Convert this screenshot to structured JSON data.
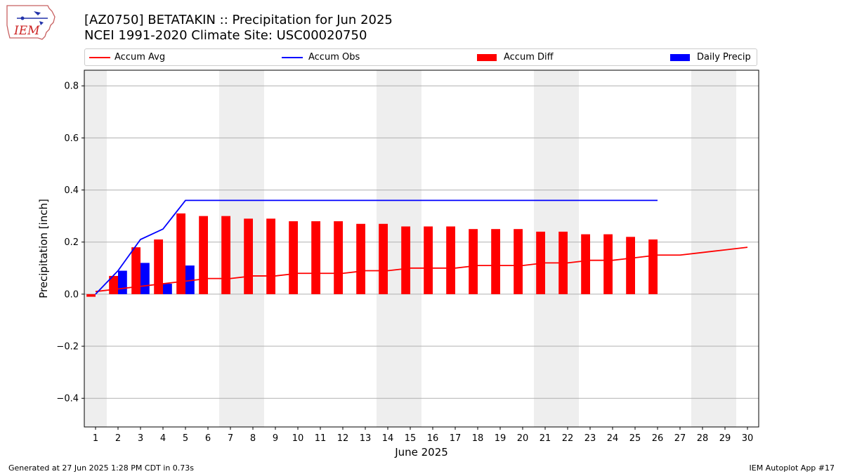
{
  "title": "[AZ0750] BETATAKIN :: Precipitation for Jun 2025",
  "subtitle": "NCEI 1991-2020 Climate Site: USC00020750",
  "logo_text": "IEM",
  "footer_left": "Generated at 27 Jun 2025 1:28 PM CDT in 0.73s",
  "footer_right": "IEM Autoplot App #17",
  "legend": [
    {
      "label": "Accum Avg",
      "kind": "line",
      "color": "#ff0000"
    },
    {
      "label": "Accum Obs",
      "kind": "line",
      "color": "#0000ff"
    },
    {
      "label": "Accum Diff",
      "kind": "box",
      "color": "#ff0000"
    },
    {
      "label": "Daily Precip",
      "kind": "box",
      "color": "#0000ff"
    }
  ],
  "chart_data": {
    "type": "bar",
    "xlabel": "June 2025",
    "ylabel": "Precipitation [inch]",
    "xlim": [
      0.5,
      30.5
    ],
    "ylim": [
      -0.51,
      0.86
    ],
    "x_ticks": [
      1,
      2,
      3,
      4,
      5,
      6,
      7,
      8,
      9,
      10,
      11,
      12,
      13,
      14,
      15,
      16,
      17,
      18,
      19,
      20,
      21,
      22,
      23,
      24,
      25,
      26,
      27,
      28,
      29,
      30
    ],
    "y_ticks": [
      -0.4,
      -0.2,
      0.0,
      0.2,
      0.4,
      0.6,
      0.8
    ],
    "y_tick_labels": [
      "−0.4",
      "−0.2",
      "0.0",
      "0.2",
      "0.4",
      "0.6",
      "0.8"
    ],
    "grid": "horizontal",
    "legend_position": "top",
    "weekend_shading": [
      [
        0.5,
        1.5
      ],
      [
        6.5,
        8.5
      ],
      [
        13.5,
        15.5
      ],
      [
        20.5,
        22.5
      ],
      [
        27.5,
        29.5
      ]
    ],
    "series": [
      {
        "name": "Accum Avg",
        "kind": "line",
        "color": "#ff0000",
        "x": [
          1,
          2,
          3,
          4,
          5,
          6,
          7,
          8,
          9,
          10,
          11,
          12,
          13,
          14,
          15,
          16,
          17,
          18,
          19,
          20,
          21,
          22,
          23,
          24,
          25,
          26,
          27,
          28,
          29,
          30
        ],
        "values": [
          0.01,
          0.02,
          0.03,
          0.04,
          0.05,
          0.06,
          0.06,
          0.07,
          0.07,
          0.08,
          0.08,
          0.08,
          0.09,
          0.09,
          0.1,
          0.1,
          0.1,
          0.11,
          0.11,
          0.11,
          0.12,
          0.12,
          0.13,
          0.13,
          0.14,
          0.15,
          0.15,
          0.16,
          0.17,
          0.18
        ]
      },
      {
        "name": "Accum Obs",
        "kind": "line",
        "color": "#0000ff",
        "x": [
          1,
          2,
          3,
          4,
          5,
          6,
          7,
          8,
          9,
          10,
          11,
          12,
          13,
          14,
          15,
          16,
          17,
          18,
          19,
          20,
          21,
          22,
          23,
          24,
          25,
          26
        ],
        "values": [
          0.0,
          0.09,
          0.21,
          0.25,
          0.36,
          0.36,
          0.36,
          0.36,
          0.36,
          0.36,
          0.36,
          0.36,
          0.36,
          0.36,
          0.36,
          0.36,
          0.36,
          0.36,
          0.36,
          0.36,
          0.36,
          0.36,
          0.36,
          0.36,
          0.36,
          0.36
        ]
      },
      {
        "name": "Accum Diff",
        "kind": "bar",
        "color": "#ff0000",
        "x": [
          1,
          2,
          3,
          4,
          5,
          6,
          7,
          8,
          9,
          10,
          11,
          12,
          13,
          14,
          15,
          16,
          17,
          18,
          19,
          20,
          21,
          22,
          23,
          24,
          25,
          26
        ],
        "values": [
          -0.01,
          0.07,
          0.18,
          0.21,
          0.31,
          0.3,
          0.3,
          0.29,
          0.29,
          0.28,
          0.28,
          0.28,
          0.27,
          0.27,
          0.26,
          0.26,
          0.26,
          0.25,
          0.25,
          0.25,
          0.24,
          0.24,
          0.23,
          0.23,
          0.22,
          0.21
        ]
      },
      {
        "name": "Daily Precip",
        "kind": "bar",
        "color": "#0000ff",
        "x": [
          2,
          3,
          4,
          5
        ],
        "values": [
          0.09,
          0.12,
          0.04,
          0.11
        ]
      }
    ]
  }
}
